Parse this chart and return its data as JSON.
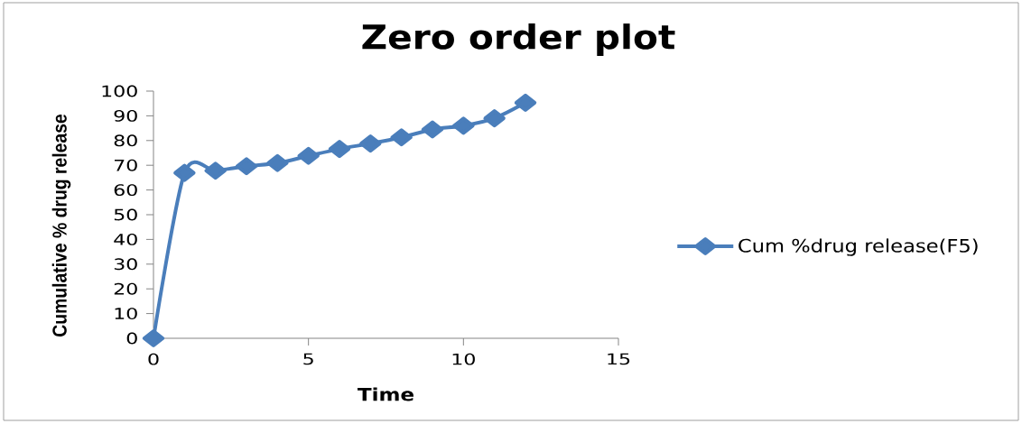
{
  "chart_data": {
    "type": "line",
    "title": "Zero order plot",
    "xlabel": "Time",
    "ylabel": "Cumulative % drug release",
    "x": [
      0,
      1,
      2,
      3,
      4,
      5,
      6,
      7,
      8,
      9,
      10,
      11,
      12
    ],
    "series": [
      {
        "name": "Cum %drug release(F5)",
        "color": "#4a7ebb",
        "values": [
          0,
          66.9,
          67.8,
          69.6,
          70.9,
          73.8,
          76.6,
          78.8,
          81.3,
          84.5,
          86.0,
          89.0,
          95.3
        ]
      }
    ],
    "xlim": [
      0,
      15
    ],
    "xticks": [
      0,
      5,
      10,
      15
    ],
    "ylim": [
      0,
      100
    ],
    "yticks": [
      0,
      10,
      20,
      30,
      40,
      50,
      60,
      70,
      80,
      90,
      100
    ],
    "legend": "right",
    "marker": "diamond",
    "line_style": "solid"
  }
}
